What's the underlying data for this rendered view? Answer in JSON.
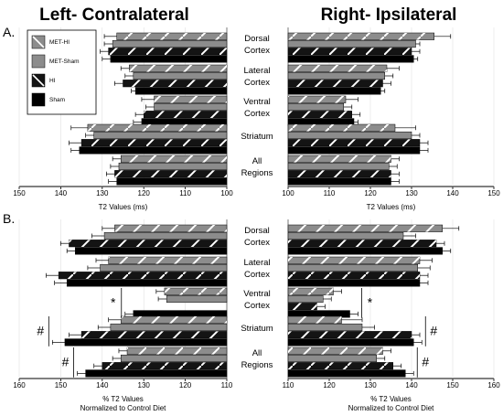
{
  "figure": {
    "title_left": "Left- Contralateral",
    "title_right": "Right- Ipsilateral",
    "panel_a": "A.",
    "panel_b": "B."
  },
  "colors": {
    "MET-HI": "#8c8c8c",
    "MET-Sham": "#8c8c8c",
    "HI": "#141414",
    "Sham": "#000000"
  },
  "legend": [
    "MET-HI",
    "MET-Sham",
    "HI",
    "Sham"
  ],
  "regions": [
    {
      "l1": "Dorsal",
      "l2": "Cortex"
    },
    {
      "l1": "Lateral",
      "l2": "Cortex"
    },
    {
      "l1": "Ventral",
      "l2": "Cortex"
    },
    {
      "l1": "Striatum",
      "l2": ""
    },
    {
      "l1": "All",
      "l2": "Regions"
    }
  ],
  "chart_data": [
    {
      "type": "bar",
      "panel": "A",
      "side": "Left- Contralateral",
      "xlabel": "T2 Values (ms)",
      "xlim": [
        150,
        100
      ],
      "reversed": true,
      "ticks": [
        150,
        140,
        130,
        120,
        110,
        100
      ],
      "categories": [
        "Dorsal Cortex",
        "Lateral Cortex",
        "Ventral Cortex",
        "Striatum",
        "All Regions"
      ],
      "series": [
        {
          "name": "MET-HI",
          "values": [
            126.5,
            123.5,
            117.5,
            133.5,
            125.5
          ],
          "errors": [
            3,
            2,
            3,
            4,
            2
          ]
        },
        {
          "name": "MET-Sham",
          "values": [
            127.5,
            122.5,
            117.5,
            132,
            126
          ],
          "errors": [
            2,
            2,
            2,
            2,
            2
          ]
        },
        {
          "name": "HI",
          "values": [
            128.5,
            125,
            120,
            135,
            127
          ],
          "errors": [
            2,
            2,
            2,
            3,
            2
          ]
        },
        {
          "name": "Sham",
          "values": [
            128,
            122,
            120.5,
            135.5,
            126.5
          ],
          "errors": [
            2,
            1,
            2,
            2,
            2
          ]
        }
      ],
      "annotations": []
    },
    {
      "type": "bar",
      "panel": "A",
      "side": "Right- Ipsilateral",
      "xlabel": "T2 Values (ms)",
      "xlim": [
        100,
        150
      ],
      "reversed": false,
      "ticks": [
        100,
        110,
        120,
        130,
        140,
        150
      ],
      "categories": [
        "Dorsal Cortex",
        "Lateral Cortex",
        "Ventral Cortex",
        "Striatum",
        "All Regions"
      ],
      "series": [
        {
          "name": "MET-HI",
          "values": [
            135.5,
            124,
            114,
            126,
            125
          ],
          "errors": [
            4,
            3,
            3,
            5,
            2
          ]
        },
        {
          "name": "MET-Sham",
          "values": [
            131,
            123.5,
            113.5,
            130,
            124.5
          ],
          "errors": [
            1,
            2,
            2,
            2,
            2
          ]
        },
        {
          "name": "HI",
          "values": [
            130,
            123,
            115.5,
            132,
            125
          ],
          "errors": [
            2,
            2,
            2,
            2,
            2
          ]
        },
        {
          "name": "Sham",
          "values": [
            130.5,
            122.5,
            116,
            132,
            125
          ],
          "errors": [
            1,
            1,
            1,
            2,
            2
          ]
        }
      ],
      "annotations": []
    },
    {
      "type": "bar",
      "panel": "B",
      "side": "Left- Contralateral",
      "xlabel": "% T2 Values Normalized to Control Diet",
      "xlim": [
        160,
        110
      ],
      "reversed": true,
      "ticks": [
        160,
        150,
        140,
        130,
        120,
        110
      ],
      "categories": [
        "Dorsal Cortex",
        "Lateral Cortex",
        "Ventral Cortex",
        "Striatum",
        "All Regions"
      ],
      "series": [
        {
          "name": "MET-HI",
          "values": [
            137,
            138.5,
            125,
            135.5,
            134
          ],
          "errors": [
            3,
            3,
            2,
            3,
            2
          ]
        },
        {
          "name": "MET-Sham",
          "values": [
            139.5,
            140.5,
            124.5,
            138,
            135.5
          ],
          "errors": [
            3,
            3,
            2,
            3,
            2
          ]
        },
        {
          "name": "HI",
          "values": [
            148,
            150.5,
            110,
            145,
            140
          ],
          "errors": [
            2,
            3,
            0,
            3,
            2
          ]
        },
        {
          "name": "Sham",
          "values": [
            146.5,
            148.5,
            132.5,
            149,
            144
          ],
          "errors": [
            2,
            3,
            2,
            3,
            2
          ]
        }
      ],
      "annotations": [
        {
          "region": "Ventral Cortex",
          "symbol": "*"
        },
        {
          "region": "Striatum",
          "symbol": "#"
        },
        {
          "region": "All Regions",
          "symbol": "#"
        }
      ]
    },
    {
      "type": "bar",
      "panel": "B",
      "side": "Right- Ipsilateral",
      "xlabel": "% T2 Values Normalized to Control Diet",
      "xlim": [
        110,
        160
      ],
      "reversed": false,
      "ticks": [
        110,
        120,
        130,
        140,
        150,
        160
      ],
      "categories": [
        "Dorsal Cortex",
        "Lateral Cortex",
        "Ventral Cortex",
        "Striatum",
        "All Regions"
      ],
      "series": [
        {
          "name": "MET-HI",
          "values": [
            147.5,
            142,
            121,
            123,
            133
          ],
          "errors": [
            4,
            3,
            2,
            5,
            2
          ]
        },
        {
          "name": "MET-Sham",
          "values": [
            138,
            141.5,
            118.5,
            128,
            131.5
          ],
          "errors": [
            3,
            3,
            2,
            3,
            2
          ]
        },
        {
          "name": "HI",
          "values": [
            146,
            142,
            117,
            140,
            135.5
          ],
          "errors": [
            2,
            2,
            2,
            2,
            2
          ]
        },
        {
          "name": "Sham",
          "values": [
            147.5,
            142,
            125,
            140.5,
            138.5
          ],
          "errors": [
            2,
            2,
            2,
            2,
            2
          ]
        }
      ],
      "annotations": [
        {
          "region": "Ventral Cortex",
          "symbol": "*"
        },
        {
          "region": "Striatum",
          "symbol": "#"
        },
        {
          "region": "All Regions",
          "symbol": "#"
        }
      ]
    }
  ]
}
